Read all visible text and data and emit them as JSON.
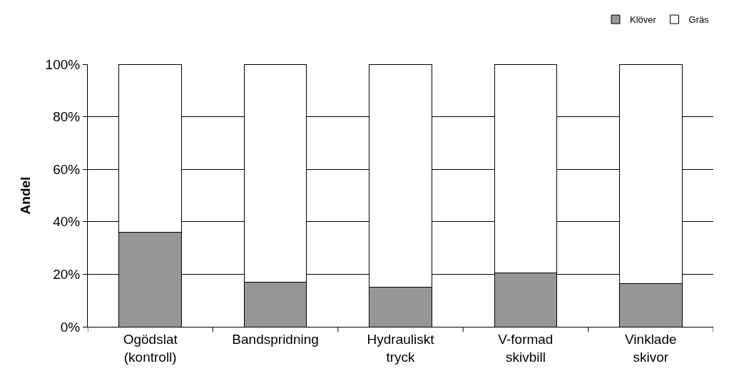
{
  "chart_data": {
    "type": "bar",
    "stacked": true,
    "ylabel": "Andel",
    "categories": [
      "Ogödslat\n(kontroll)",
      "Bandspridning",
      "Hydrauliskt\ntryck",
      "V-formad\nskivbill",
      "Vinklade\nskivor"
    ],
    "series": [
      {
        "name": "Klöver",
        "color": "#969696",
        "values": [
          36,
          17,
          15,
          20.5,
          16.5
        ]
      },
      {
        "name": "Gräs",
        "color": "#ffffff",
        "values": [
          64,
          83,
          85,
          79.5,
          83.5
        ]
      }
    ],
    "ylim": [
      0,
      100
    ],
    "yticks": [
      {
        "value": 0,
        "label": "0%"
      },
      {
        "value": 20,
        "label": "20%"
      },
      {
        "value": 40,
        "label": "40%"
      },
      {
        "value": 60,
        "label": "60%"
      },
      {
        "value": 80,
        "label": "80%"
      },
      {
        "value": 100,
        "label": "100%"
      }
    ],
    "grid": "y",
    "legend": "top right"
  }
}
